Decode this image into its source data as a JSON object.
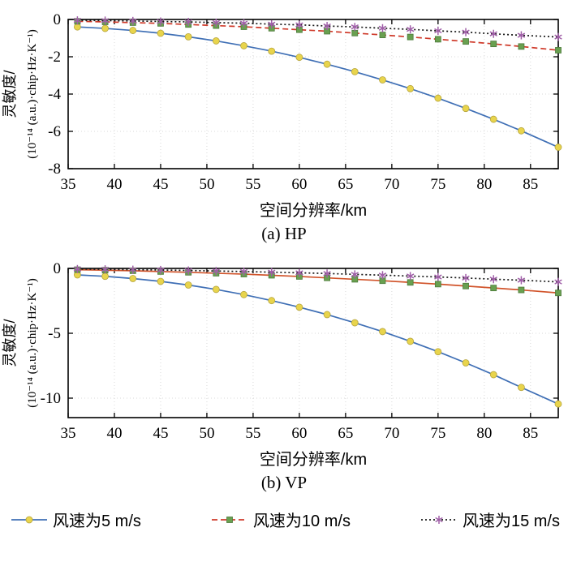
{
  "chart_data": [
    {
      "type": "line",
      "caption": "(a) HP",
      "xlabel": "空间分辨率/km",
      "ylabel_line1": "灵敏度/",
      "ylabel_line2": "(10⁻¹⁴ (a.u.)·chip·Hz·K⁻¹)",
      "xlim": [
        35,
        88
      ],
      "ylim": [
        -8,
        0
      ],
      "xticks": [
        35,
        40,
        45,
        50,
        55,
        60,
        65,
        70,
        75,
        80,
        85
      ],
      "yticks": [
        0,
        -2,
        -4,
        -6,
        -8
      ],
      "grid": true,
      "x": [
        36,
        39,
        42,
        45,
        48,
        51,
        54,
        57,
        60,
        63,
        66,
        69,
        72,
        75,
        78,
        81,
        84,
        88
      ],
      "series": [
        {
          "name": "风速为5 m/s",
          "line_color": "#3f6fb5",
          "dash": null,
          "marker": "circle",
          "marker_color": "#e8d44c",
          "values": [
            -0.4,
            -0.48,
            -0.59,
            -0.74,
            -0.93,
            -1.15,
            -1.41,
            -1.7,
            -2.03,
            -2.4,
            -2.8,
            -3.24,
            -3.71,
            -4.22,
            -4.77,
            -5.35,
            -5.97,
            -6.85
          ]
        },
        {
          "name": "风速为10 m/s",
          "line_color": "#cf3a2a",
          "dash": "7 4",
          "marker": "square",
          "marker_color": "#69a050",
          "values": [
            -0.1,
            -0.13,
            -0.17,
            -0.21,
            -0.27,
            -0.33,
            -0.39,
            -0.47,
            -0.55,
            -0.63,
            -0.73,
            -0.83,
            -0.94,
            -1.06,
            -1.18,
            -1.31,
            -1.45,
            -1.65
          ]
        },
        {
          "name": "风速为15 m/s",
          "line_color": "#1a1a1a",
          "dash": "2 3",
          "marker": "star",
          "marker_color": "#a05fa8",
          "values": [
            -0.05,
            -0.06,
            -0.08,
            -0.11,
            -0.13,
            -0.17,
            -0.2,
            -0.25,
            -0.29,
            -0.35,
            -0.4,
            -0.47,
            -0.53,
            -0.61,
            -0.68,
            -0.77,
            -0.85,
            -0.94
          ]
        }
      ]
    },
    {
      "type": "line",
      "caption": "(b) VP",
      "xlabel": "空间分辨率/km",
      "ylabel_line1": "灵敏度/",
      "ylabel_line2": "(10⁻¹⁴ (a.u.)·chip·Hz·K⁻¹)",
      "xlim": [
        35,
        88
      ],
      "ylim": [
        -11.5,
        0
      ],
      "xticks": [
        35,
        40,
        45,
        50,
        55,
        60,
        65,
        70,
        75,
        80,
        85
      ],
      "yticks": [
        0,
        -5,
        -10
      ],
      "grid": true,
      "x": [
        36,
        39,
        42,
        45,
        48,
        51,
        54,
        57,
        60,
        63,
        66,
        69,
        72,
        75,
        78,
        81,
        84,
        88
      ],
      "series": [
        {
          "name": "风速为5 m/s",
          "line_color": "#3f6fb5",
          "dash": null,
          "marker": "circle",
          "marker_color": "#e8d44c",
          "values": [
            -0.5,
            -0.61,
            -0.78,
            -1.0,
            -1.28,
            -1.62,
            -2.02,
            -2.48,
            -2.99,
            -3.56,
            -4.19,
            -4.87,
            -5.62,
            -6.42,
            -7.28,
            -8.19,
            -9.17,
            -10.45
          ]
        },
        {
          "name": "风速为10 m/s",
          "line_color": "#d1542b",
          "dash": null,
          "marker": "square",
          "marker_color": "#69a050",
          "values": [
            -0.1,
            -0.14,
            -0.18,
            -0.24,
            -0.3,
            -0.37,
            -0.44,
            -0.53,
            -0.62,
            -0.73,
            -0.84,
            -0.95,
            -1.08,
            -1.21,
            -1.36,
            -1.51,
            -1.66,
            -1.89
          ]
        },
        {
          "name": "风速为15 m/s",
          "line_color": "#1a1a1a",
          "dash": "2 3",
          "marker": "star",
          "marker_color": "#a05fa8",
          "values": [
            -0.05,
            -0.07,
            -0.1,
            -0.12,
            -0.16,
            -0.2,
            -0.24,
            -0.29,
            -0.34,
            -0.39,
            -0.46,
            -0.52,
            -0.59,
            -0.66,
            -0.74,
            -0.83,
            -0.91,
            -1.04
          ]
        }
      ]
    }
  ],
  "legend": {
    "items": [
      {
        "label": "风速为5 m/s"
      },
      {
        "label": "风速为10 m/s"
      },
      {
        "label": "风速为15 m/s"
      }
    ]
  }
}
